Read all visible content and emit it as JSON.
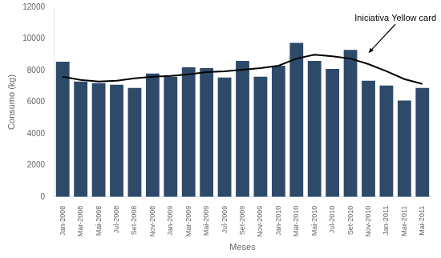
{
  "chart_data": {
    "type": "bar",
    "categories": [
      "Jan-2008",
      "Mar-2008",
      "Mai-2008",
      "Jul-2008",
      "Set-2008",
      "Nov-2008",
      "Jan-2009",
      "Mar-2009",
      "Mai-2009",
      "Jul-2009",
      "Set-2009",
      "Nov-2009",
      "Jan-2010",
      "Mar-2010",
      "Mai-2010",
      "Jul-2010",
      "Set-2010",
      "Nov-2010",
      "Jan-2011",
      "Mar-2011",
      "Mai-2011"
    ],
    "series": [
      {
        "type": "bar",
        "color": "#2E4A6B",
        "values": [
          8550,
          7300,
          7200,
          7100,
          6900,
          7800,
          7600,
          8200,
          8150,
          7550,
          8600,
          7600,
          8300,
          9750,
          8600,
          8100,
          9300,
          7350,
          7050,
          6100,
          6900
        ]
      },
      {
        "type": "line",
        "color": "#000000",
        "marker": "none",
        "values": [
          7600,
          7400,
          7300,
          7350,
          7500,
          7600,
          7650,
          7750,
          7900,
          7950,
          8050,
          8150,
          8300,
          8750,
          9000,
          8900,
          8750,
          8400,
          7950,
          7450,
          7150
        ]
      }
    ],
    "xlabel": "Meses",
    "ylabel": "Consumo (kg)",
    "ylim": [
      0,
      12000
    ],
    "yticks": [
      0,
      2000,
      4000,
      6000,
      8000,
      10000,
      12000
    ],
    "grid": false,
    "annotations": [
      {
        "text": "Iniciativa Yellow card",
        "x": "Nov-2010",
        "y": 9100
      }
    ]
  }
}
